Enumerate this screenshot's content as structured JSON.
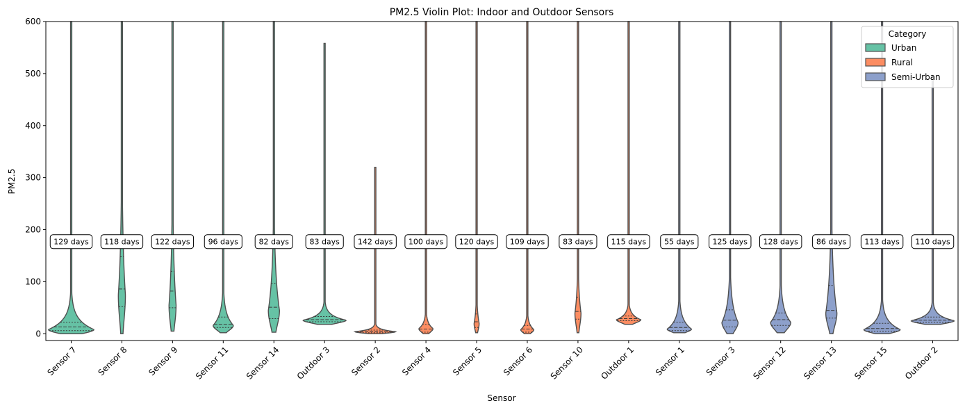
{
  "chart_data": {
    "type": "violin",
    "title": "PM2.5 Violin Plot: Indoor and Outdoor Sensors",
    "xlabel": "Sensor",
    "ylabel": "PM2.5",
    "ylim": [
      -13,
      600
    ],
    "yticks": [
      0,
      100,
      200,
      300,
      400,
      500,
      600
    ],
    "grid": false,
    "legend": {
      "title": "Category",
      "placement": "top-right",
      "entries": [
        {
          "name": "Urban",
          "color": "#66c2a5"
        },
        {
          "name": "Rural",
          "color": "#fc8d62"
        },
        {
          "name": "Semi-Urban",
          "color": "#8da0cb"
        }
      ]
    },
    "violins": [
      {
        "sensor": "Sensor 7",
        "category": "Urban",
        "days": "129 days",
        "min": 0,
        "max": 600,
        "q1": 6,
        "median": 13,
        "q3": 22,
        "peak": 8,
        "width": 0.9
      },
      {
        "sensor": "Sensor 8",
        "category": "Urban",
        "days": "118 days",
        "min": 0,
        "max": 600,
        "q1": 52,
        "median": 86,
        "q3": 148,
        "peak": 75,
        "width": 0.14
      },
      {
        "sensor": "Sensor 9",
        "category": "Urban",
        "days": "122 days",
        "min": 5,
        "max": 600,
        "q1": 50,
        "median": 82,
        "q3": 120,
        "peak": 55,
        "width": 0.14
      },
      {
        "sensor": "Sensor 11",
        "category": "Urban",
        "days": "96 days",
        "min": 2,
        "max": 600,
        "q1": 12,
        "median": 18,
        "q3": 32,
        "peak": 16,
        "width": 0.4
      },
      {
        "sensor": "Sensor 14",
        "category": "Urban",
        "days": "82 days",
        "min": 3,
        "max": 600,
        "q1": 29,
        "median": 51,
        "q3": 97,
        "peak": 45,
        "width": 0.22
      },
      {
        "sensor": "Outdoor 3",
        "category": "Urban",
        "days": "83 days",
        "min": 18,
        "max": 558,
        "q1": 23,
        "median": 27,
        "q3": 33,
        "peak": 26,
        "width": 0.85
      },
      {
        "sensor": "Sensor 2",
        "category": "Rural",
        "days": "142 days",
        "min": 0,
        "max": 320,
        "q1": 2,
        "median": 4,
        "q3": 7,
        "peak": 4,
        "width": 0.8
      },
      {
        "sensor": "Sensor 4",
        "category": "Rural",
        "days": "100 days",
        "min": 0,
        "max": 600,
        "q1": 3,
        "median": 9,
        "q3": 18,
        "peak": 10,
        "width": 0.28
      },
      {
        "sensor": "Sensor 5",
        "category": "Rural",
        "days": "120 days",
        "min": 2,
        "max": 600,
        "q1": 12,
        "median": 23,
        "q3": 38,
        "peak": 20,
        "width": 0.1
      },
      {
        "sensor": "Sensor 6",
        "category": "Rural",
        "days": "109 days",
        "min": 0,
        "max": 600,
        "q1": 3,
        "median": 9,
        "q3": 16,
        "peak": 8,
        "width": 0.26
      },
      {
        "sensor": "Sensor 10",
        "category": "Rural",
        "days": "83 days",
        "min": 2,
        "max": 600,
        "q1": 28,
        "median": 43,
        "q3": 70,
        "peak": 40,
        "width": 0.12
      },
      {
        "sensor": "Outdoor 1",
        "category": "Rural",
        "days": "115 days",
        "min": 18,
        "max": 600,
        "q1": 25,
        "median": 29,
        "q3": 34,
        "peak": 27,
        "width": 0.48
      },
      {
        "sensor": "Sensor 1",
        "category": "Semi-Urban",
        "days": "55 days",
        "min": 2,
        "max": 600,
        "q1": 6,
        "median": 12,
        "q3": 22,
        "peak": 9,
        "width": 0.48
      },
      {
        "sensor": "Sensor 3",
        "category": "Semi-Urban",
        "days": "125 days",
        "min": 0,
        "max": 600,
        "q1": 13,
        "median": 26,
        "q3": 46,
        "peak": 22,
        "width": 0.32
      },
      {
        "sensor": "Sensor 12",
        "category": "Semi-Urban",
        "days": "128 days",
        "min": 2,
        "max": 600,
        "q1": 16,
        "median": 27,
        "q3": 40,
        "peak": 22,
        "width": 0.4
      },
      {
        "sensor": "Sensor 13",
        "category": "Semi-Urban",
        "days": "86 days",
        "min": 0,
        "max": 600,
        "q1": 30,
        "median": 45,
        "q3": 93,
        "peak": 40,
        "width": 0.22
      },
      {
        "sensor": "Sensor 15",
        "category": "Semi-Urban",
        "days": "113 days",
        "min": 0,
        "max": 600,
        "q1": 5,
        "median": 10,
        "q3": 20,
        "peak": 8,
        "width": 0.72
      },
      {
        "sensor": "Outdoor 2",
        "category": "Semi-Urban",
        "days": "110 days",
        "min": 18,
        "max": 495,
        "q1": 22,
        "median": 26,
        "q3": 32,
        "peak": 25,
        "width": 0.85
      }
    ]
  }
}
